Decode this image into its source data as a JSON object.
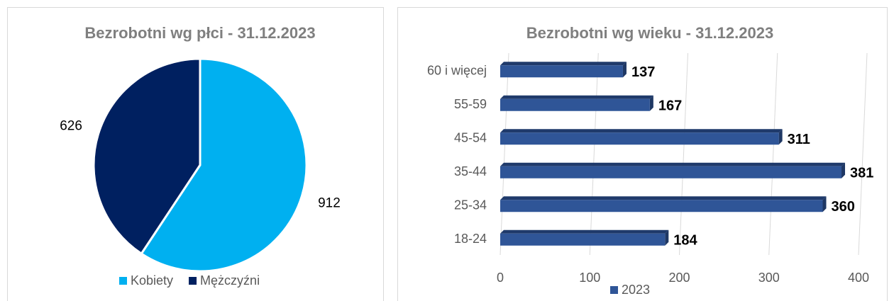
{
  "chart_data": [
    {
      "type": "pie",
      "title": "Bezrobotni wg płci - 31.12.2023",
      "categories": [
        "Kobiety",
        "Mężczyźni"
      ],
      "values": [
        912,
        626
      ],
      "colors": [
        "#00b0f0",
        "#002060"
      ],
      "legend": "bottom"
    },
    {
      "type": "hbar",
      "title": "Bezrobotni wg wieku - 31.12.2023",
      "categories": [
        "60 i więcej",
        "55-59",
        "45-54",
        "35-44",
        "25-34",
        "18-24"
      ],
      "series": [
        {
          "name": "2023",
          "color": "#2f5597",
          "values": [
            137,
            167,
            311,
            381,
            360,
            184
          ]
        }
      ],
      "xlim": [
        0,
        400
      ],
      "xticks": [
        0,
        100,
        200,
        300,
        400
      ],
      "grid": true,
      "legend": "bottom"
    }
  ]
}
